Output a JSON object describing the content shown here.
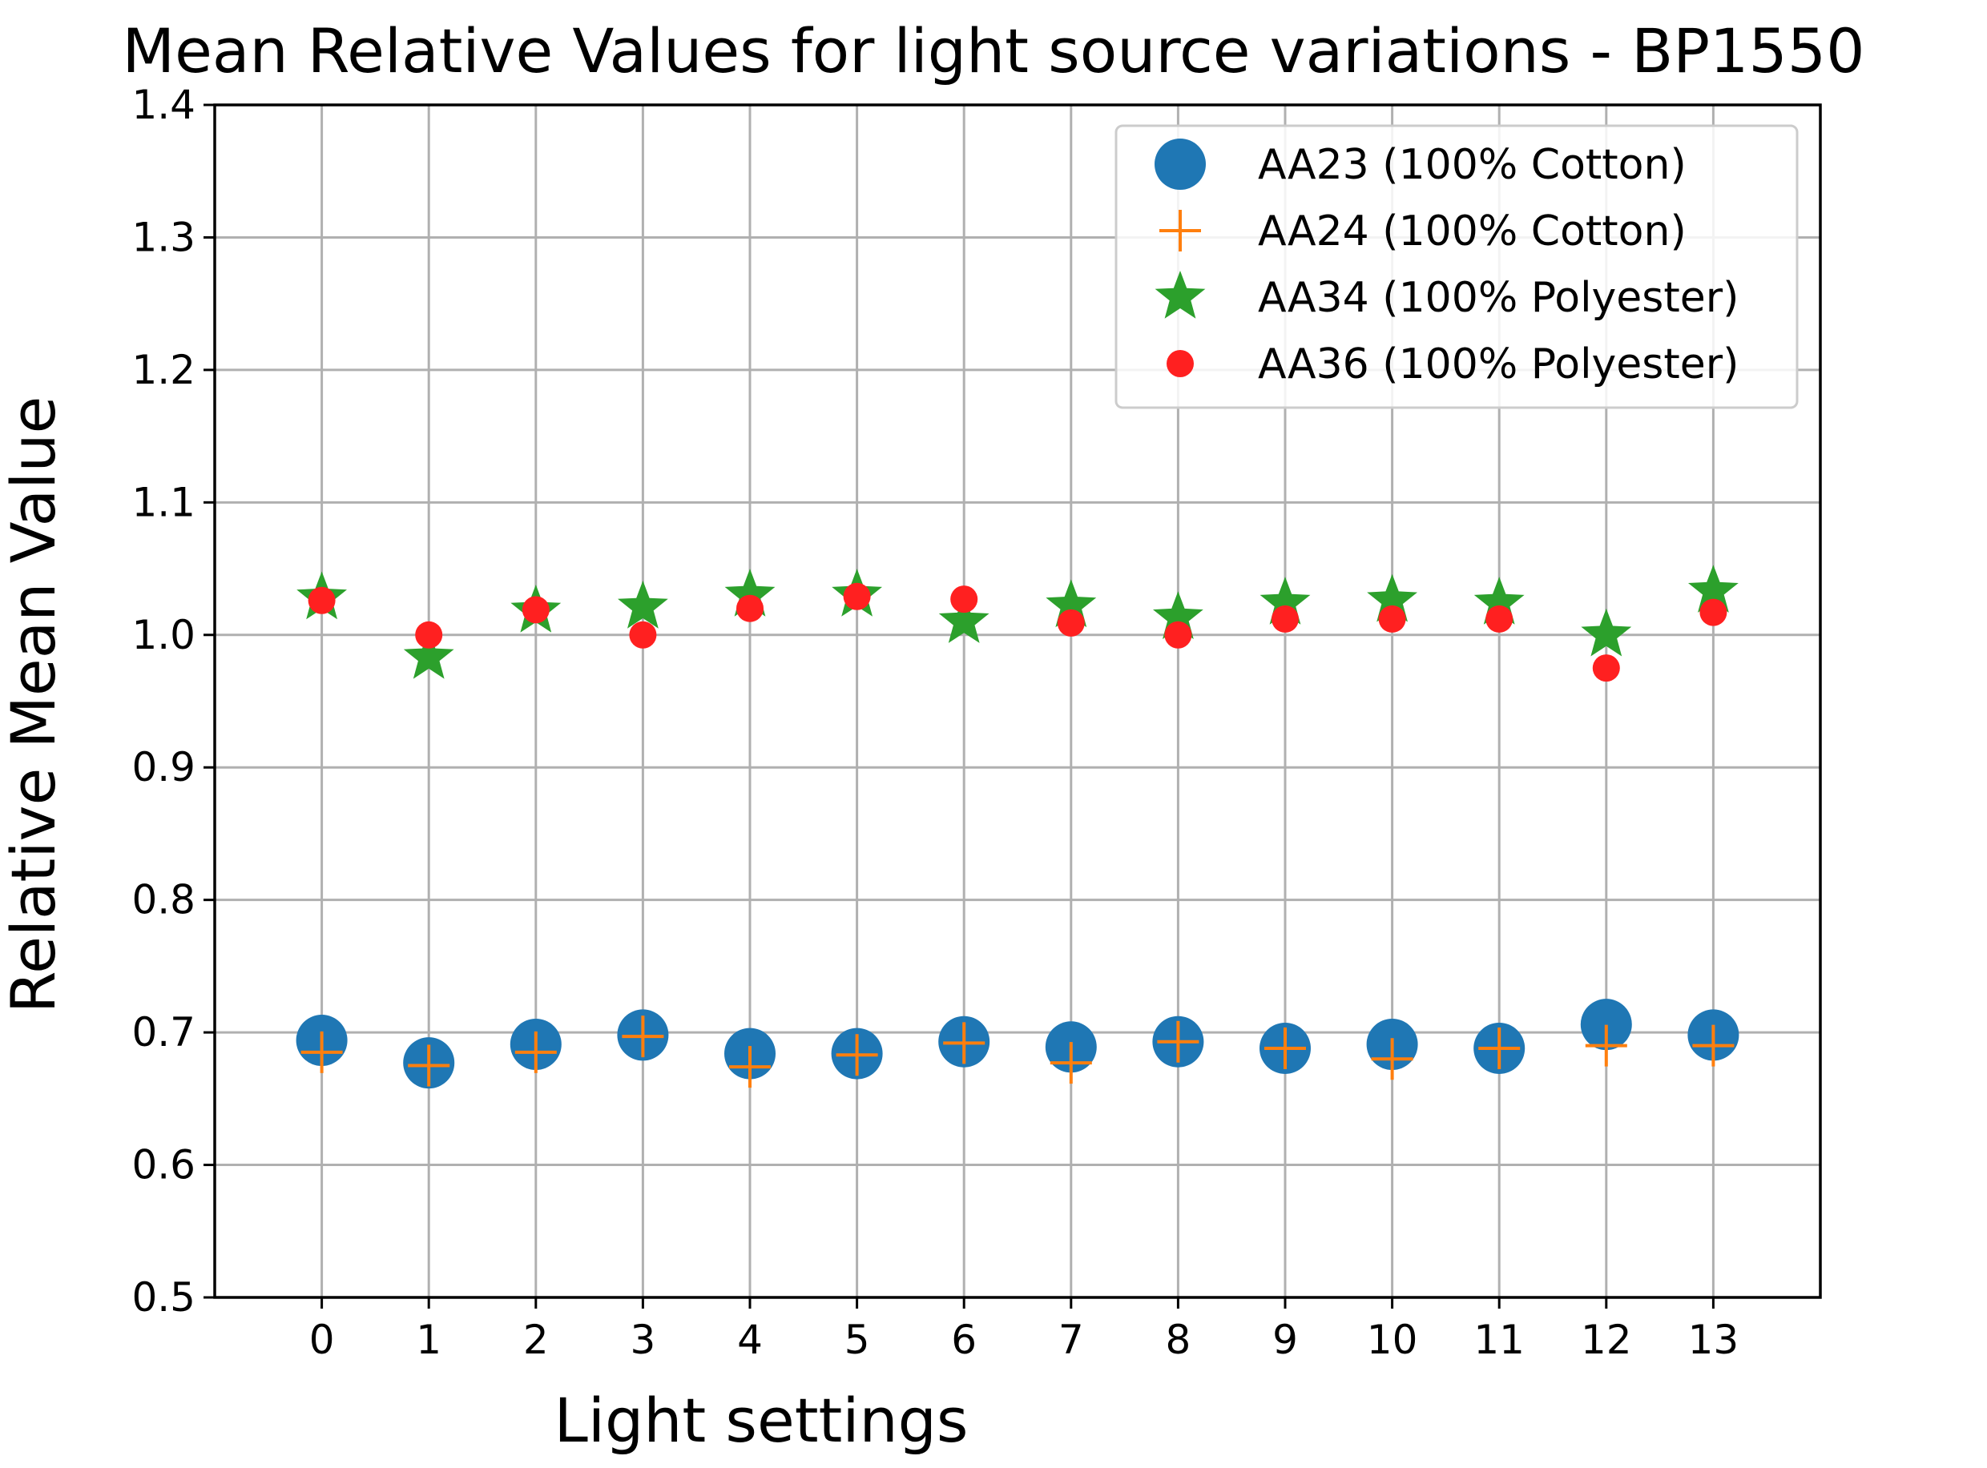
{
  "chart_data": {
    "type": "scatter",
    "title": "Mean Relative Values for light source variations - BP1550",
    "xlabel": "Light settings",
    "ylabel": "Relative Mean Value",
    "x": [
      0,
      1,
      2,
      3,
      4,
      5,
      6,
      7,
      8,
      9,
      10,
      11,
      12,
      13
    ],
    "x_ticks": [
      "0",
      "1",
      "2",
      "3",
      "4",
      "5",
      "6",
      "7",
      "8",
      "9",
      "10",
      "11",
      "12",
      "13"
    ],
    "y_ticks": [
      "0.5",
      "0.6",
      "0.7",
      "0.8",
      "0.9",
      "1.0",
      "1.1",
      "1.2",
      "1.3",
      "1.4"
    ],
    "ylim": [
      0.5,
      1.4
    ],
    "xlim": [
      -1,
      14
    ],
    "grid": true,
    "legend_position": "top-right",
    "series": [
      {
        "name": "AA23 (100% Cotton)",
        "marker": "circle",
        "color": "#1f77b4",
        "values": [
          0.694,
          0.677,
          0.691,
          0.698,
          0.684,
          0.684,
          0.693,
          0.689,
          0.693,
          0.688,
          0.691,
          0.688,
          0.706,
          0.698
        ]
      },
      {
        "name": "AA24 (100% Cotton)",
        "marker": "plus",
        "color": "#ff7f0e",
        "values": [
          0.685,
          0.675,
          0.685,
          0.697,
          0.674,
          0.683,
          0.692,
          0.677,
          0.693,
          0.688,
          0.68,
          0.688,
          0.69,
          0.69
        ]
      },
      {
        "name": "AA34 (100% Polyester)",
        "marker": "star",
        "color": "#2ca02c",
        "values": [
          1.028,
          0.983,
          1.018,
          1.021,
          1.03,
          1.03,
          1.01,
          1.022,
          1.013,
          1.024,
          1.026,
          1.024,
          1.0,
          1.033
        ]
      },
      {
        "name": "AA36 (100% Polyester)",
        "marker": "dot",
        "color": "#ff2020",
        "values": [
          1.026,
          1.0,
          1.019,
          1.0,
          1.02,
          1.029,
          1.027,
          1.009,
          1.0,
          1.012,
          1.012,
          1.012,
          0.975,
          1.017
        ]
      }
    ]
  }
}
